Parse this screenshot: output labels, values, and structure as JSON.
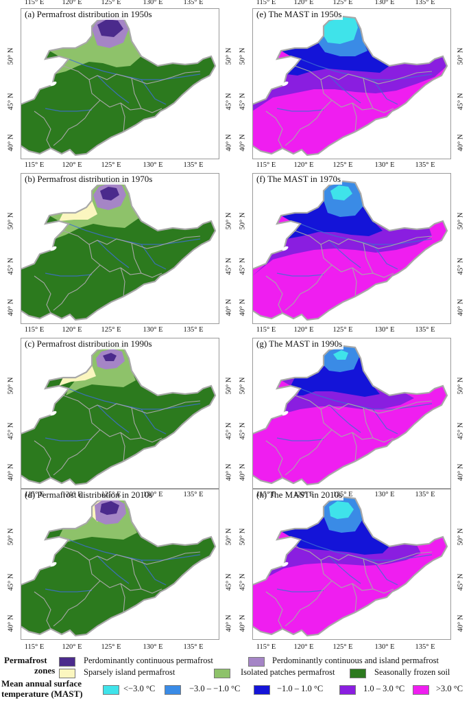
{
  "panels": [
    {
      "id": "a",
      "title": "(a) Permafrost distribution in 1950s",
      "kind": "pf",
      "era": 0
    },
    {
      "id": "e",
      "title": "(e) The MAST in 1950s",
      "kind": "mast",
      "era": 0
    },
    {
      "id": "b",
      "title": "(b) Permafrost distribution in 1970s",
      "kind": "pf",
      "era": 1
    },
    {
      "id": "f",
      "title": "(f) The MAST in 1970s",
      "kind": "mast",
      "era": 1
    },
    {
      "id": "c",
      "title": "(c) Permafrost distribution in 1990s",
      "kind": "pf",
      "era": 2
    },
    {
      "id": "g",
      "title": "(g) The MAST in 1990s",
      "kind": "mast",
      "era": 2
    },
    {
      "id": "d",
      "title": "(d) Permafrost distribution in 2010s",
      "kind": "pf",
      "era": 3
    },
    {
      "id": "h",
      "title": "(h) The MAST in 2010s",
      "kind": "mast",
      "era": 3
    }
  ],
  "axes": {
    "lon_labels": [
      "115° E",
      "120° E",
      "125° E",
      "130° E",
      "135° E"
    ],
    "lat_labels": [
      "40° N",
      "45° N",
      "50° N"
    ]
  },
  "legend": {
    "permafrost_header": [
      "Permafrost",
      "zones"
    ],
    "permafrost_items": [
      {
        "label": "Perdominantly continuous permafrost",
        "color": "#4b2a8c"
      },
      {
        "label": "Perdominantly continuous and island permafrost",
        "color": "#a585c6"
      },
      {
        "label": "Sparsely island permafrost",
        "color": "#fbf6bf"
      },
      {
        "label": "Isolated patches permafrost",
        "color": "#8ec26a"
      },
      {
        "label": "Seasonally frozen soil",
        "color": "#2c7a1e"
      }
    ],
    "mast_header": [
      "Mean annual surface",
      "temperature (MAST)"
    ],
    "mast_items": [
      {
        "label": "<−3.0 °C",
        "color": "#3fe3ea"
      },
      {
        "label": "−3.0 – −1.0 °C",
        "color": "#3a8be6"
      },
      {
        "label": "−1.0 – 1.0 °C",
        "color": "#1414d8"
      },
      {
        "label": "1.0 – 3.0 °C",
        "color": "#8a1ee0"
      },
      {
        "label": ">3.0 °C",
        "color": "#ef1ef0"
      }
    ]
  },
  "colors": {
    "pf_base": "#2c7a1e",
    "mast_base": "#ef1ef0",
    "boundary": "#a8a8a8",
    "river": "#3d6fd1"
  }
}
